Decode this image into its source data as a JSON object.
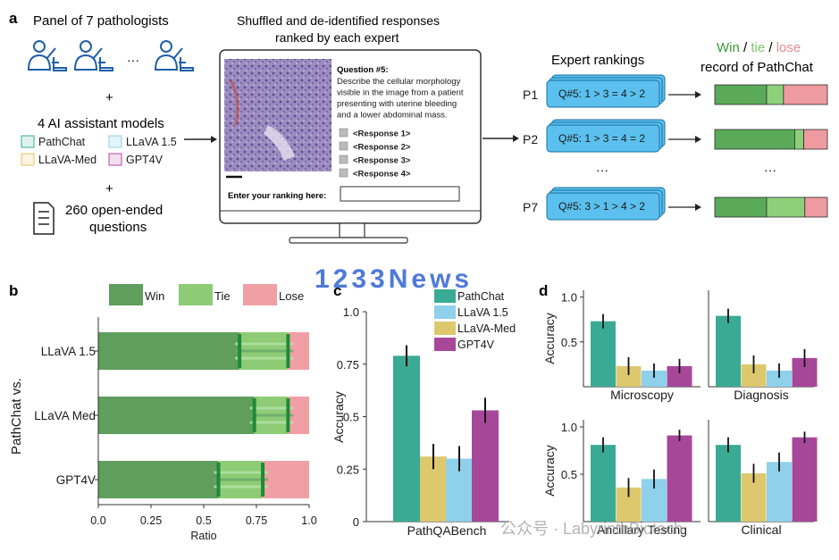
{
  "panel_a": {
    "label": "a",
    "left": {
      "pathologists": "Panel of 7 pathologists",
      "ellipsis": "···",
      "plus1": "+",
      "models_title": "4 AI assistant models",
      "legend": [
        {
          "name": "PathChat",
          "color": "#dff2ee",
          "border": "#3aaa94"
        },
        {
          "name": "LLaVA 1.5",
          "color": "#e3f4fb",
          "border": "#8fd0ea"
        },
        {
          "name": "LLaVA-Med",
          "color": "#fbf4df",
          "border": "#e2c46a"
        },
        {
          "name": "GPT4V",
          "color": "#f3dff0",
          "border": "#b8479e"
        }
      ],
      "plus2": "+",
      "questions_line1": "260 open-ended",
      "questions_line2": "questions"
    },
    "monitor": {
      "heading_line1": "Shuffled and de-identified responses",
      "heading_line2": "ranked by each expert",
      "question_title": "Question #5:",
      "question_lines": [
        "Describe the cellular morphology",
        "visible in the image from a patient",
        "presenting with uterine bleeding",
        "and a lower abdominal mass."
      ],
      "responses": [
        "<Response 1>",
        "<Response 2>",
        "<Response 3>",
        "<Response 4>"
      ],
      "ranking_prompt": "Enter your ranking here:"
    },
    "rankings": {
      "title": "Expert rankings",
      "rows": [
        {
          "expert": "P1",
          "text": "Q#5: 1 > 3 = 4 > 2"
        },
        {
          "expert": "P2",
          "text": "Q#5: 1 > 3 = 4 = 2"
        },
        {
          "expert": "P7",
          "text": "Q#5: 3 > 1 > 4 > 2"
        }
      ],
      "ellipsis": "···"
    },
    "record": {
      "win": "Win",
      "sep1": " / ",
      "tie": "tie",
      "sep2": " / ",
      "lose": "lose",
      "line2": "record of PathChat",
      "colors": {
        "win": "#5aaa5a",
        "tie": "#8ed07a",
        "lose": "#ee9aa0"
      },
      "rows": [
        {
          "win": 0.46,
          "tie": 0.15,
          "lose": 0.39
        },
        {
          "win": 0.71,
          "tie": 0.08,
          "lose": 0.21
        },
        {
          "win": 0.46,
          "tie": 0.34,
          "lose": 0.2
        }
      ],
      "ellipsis": "···"
    }
  },
  "watermark": {
    "top": "1233News",
    "bottom": "公众号 · LabyrinthBiotech"
  },
  "chart_data": [
    {
      "panel": "b",
      "type": "bar",
      "orientation": "horizontal",
      "stacked": true,
      "categories": [
        "LLaVA 1.5",
        "LLaVA Med",
        "GPT4V"
      ],
      "series": [
        {
          "name": "Win",
          "values": [
            0.67,
            0.74,
            0.57
          ],
          "color": "#5f9e5d"
        },
        {
          "name": "Tie",
          "values": [
            0.23,
            0.16,
            0.21
          ],
          "color": "#8dcc75"
        },
        {
          "name": "Lose",
          "values": [
            0.1,
            0.1,
            0.22
          ],
          "color": "#f0a0a4"
        }
      ],
      "markers": [
        [
          0.67,
          0.9
        ],
        [
          0.74,
          0.9
        ],
        [
          0.57,
          0.78
        ]
      ],
      "ylabel": "PathChat vs.",
      "xlabel": "Ratio",
      "xlim": [
        0,
        1
      ],
      "xticks": [
        "0.0",
        "0.25",
        "0.5",
        "0.75",
        "1.0"
      ],
      "legend": "top"
    },
    {
      "panel": "c",
      "type": "bar",
      "categories": [
        "PathQABench"
      ],
      "series": [
        {
          "name": "PathChat",
          "values": [
            0.79
          ],
          "err": [
            0.05
          ],
          "color": "#3aaa94"
        },
        {
          "name": "LLaVA-Med",
          "values": [
            0.31
          ],
          "err": [
            0.06
          ],
          "color": "#ddc86e"
        },
        {
          "name": "LLaVA 1.5",
          "values": [
            0.3
          ],
          "err": [
            0.06
          ],
          "color": "#8fd0ea"
        },
        {
          "name": "GPT4V",
          "values": [
            0.53
          ],
          "err": [
            0.06
          ],
          "color": "#a7479a"
        }
      ],
      "legend_order": [
        "PathChat",
        "LLaVA 1.5",
        "LLaVA-Med",
        "GPT4V"
      ],
      "ylabel": "Accuracy",
      "ylim": [
        0,
        1
      ],
      "yticks": [
        "0",
        "0.25",
        "0.5",
        "0.75",
        "1.0"
      ],
      "legend": "top-right"
    },
    {
      "panel": "d",
      "type": "bar",
      "ylabel": "Accuracy",
      "ylim": [
        0,
        1
      ],
      "yticks": [
        "0",
        "0.5",
        "1.0"
      ],
      "series_order": [
        "PathChat",
        "LLaVA-Med",
        "LLaVA 1.5",
        "GPT4V"
      ],
      "subplots": [
        {
          "category": "Microscopy",
          "values": [
            0.73,
            0.23,
            0.18,
            0.23
          ],
          "err": [
            0.08,
            0.1,
            0.08,
            0.08
          ]
        },
        {
          "category": "Diagnosis",
          "values": [
            0.79,
            0.25,
            0.18,
            0.32
          ],
          "err": [
            0.08,
            0.1,
            0.08,
            0.1
          ]
        },
        {
          "category": "Ancillary Testing",
          "values": [
            0.81,
            0.36,
            0.45,
            0.91
          ],
          "err": [
            0.08,
            0.1,
            0.1,
            0.06
          ]
        },
        {
          "category": "Clinical",
          "values": [
            0.81,
            0.51,
            0.63,
            0.89
          ],
          "err": [
            0.08,
            0.1,
            0.1,
            0.06
          ]
        }
      ]
    }
  ]
}
